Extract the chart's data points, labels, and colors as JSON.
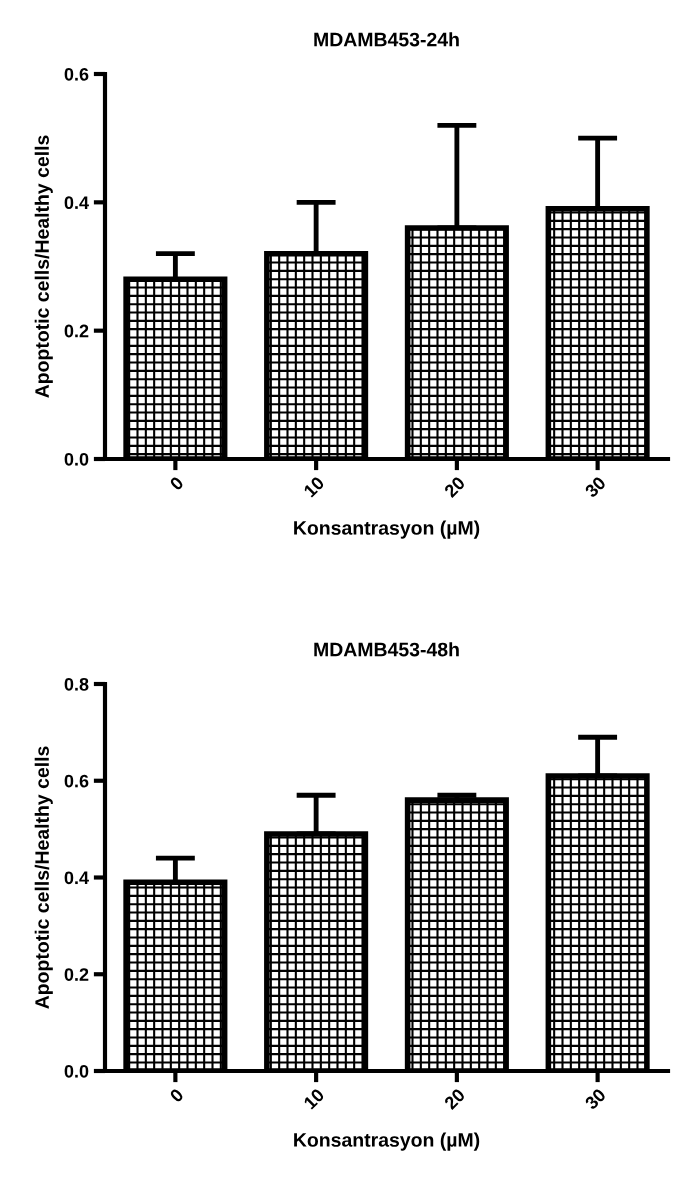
{
  "chart_data": [
    {
      "type": "bar",
      "title": "MDAMB453-24h",
      "xlabel": "Konsantrasyon (µM)",
      "ylabel": "Apoptotic cells/Healthy cells",
      "categories": [
        "0",
        "10",
        "20",
        "30"
      ],
      "values": [
        0.28,
        0.32,
        0.36,
        0.39
      ],
      "errors": [
        [
          0.28,
          0.32
        ],
        [
          0.32,
          0.4
        ],
        [
          0.36,
          0.52
        ],
        [
          0.39,
          0.5
        ]
      ],
      "color": "#000000",
      "ylim": [
        0,
        0.6
      ],
      "yticks": [
        {
          "value": 0,
          "label": "0.0"
        },
        0.2,
        0.4,
        0.6
      ],
      "grid": false,
      "legend": false
    },
    {
      "type": "bar",
      "title": "MDAMB453-48h",
      "xlabel": "Konsantrasyon (µM)",
      "ylabel": "Apoptotic cells/Healthy cells",
      "categories": [
        "0",
        "10",
        "20",
        "30"
      ],
      "values": [
        0.39,
        0.49,
        0.56,
        0.61
      ],
      "errors": [
        [
          0.39,
          0.44
        ],
        [
          0.49,
          0.57
        ],
        [
          0.56,
          0.57
        ],
        [
          0.61,
          0.69
        ]
      ],
      "color": "#000000",
      "ylim": [
        0,
        0.8
      ],
      "yticks": [
        {
          "value": 0,
          "label": "0.0"
        },
        0.2,
        0.4,
        0.6,
        0.8
      ],
      "grid": false,
      "legend": false
    }
  ]
}
